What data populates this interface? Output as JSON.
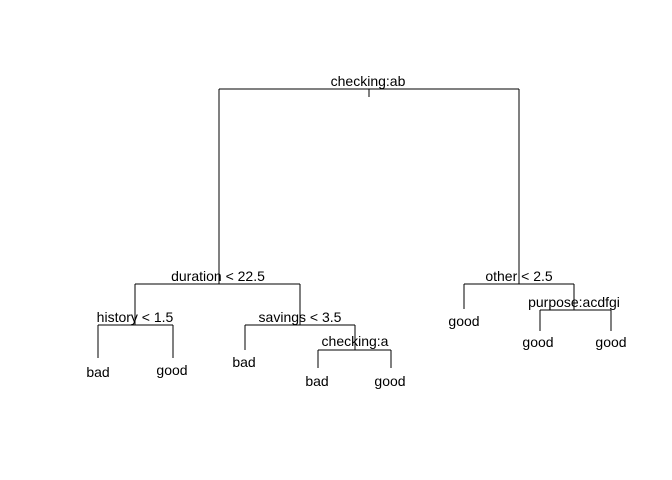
{
  "tree": {
    "root": {
      "id": "root",
      "split": "checking:ab",
      "left": {
        "id": "n_duration",
        "split": "duration < 22.5",
        "left": {
          "id": "n_history",
          "split": "history < 1.5",
          "left": {
            "id": "leaf_history_bad",
            "leaf": "bad"
          },
          "right": {
            "id": "leaf_history_good",
            "leaf": "good"
          }
        },
        "right": {
          "id": "n_savings",
          "split": "savings < 3.5",
          "left": {
            "id": "leaf_savings_bad",
            "leaf": "bad"
          },
          "right": {
            "id": "n_checking_a",
            "split": "checking:a",
            "left": {
              "id": "leaf_checking_a_bad",
              "leaf": "bad"
            },
            "right": {
              "id": "leaf_checking_a_good",
              "leaf": "good"
            }
          }
        }
      },
      "right": {
        "id": "n_other",
        "split": "other < 2.5",
        "left": {
          "id": "leaf_other_good",
          "leaf": "good"
        },
        "right": {
          "id": "n_purpose",
          "split": "purpose:acdfgi",
          "left": {
            "id": "leaf_purpose_good_1",
            "leaf": "good"
          },
          "right": {
            "id": "leaf_purpose_good_2",
            "leaf": "good"
          }
        }
      }
    }
  }
}
